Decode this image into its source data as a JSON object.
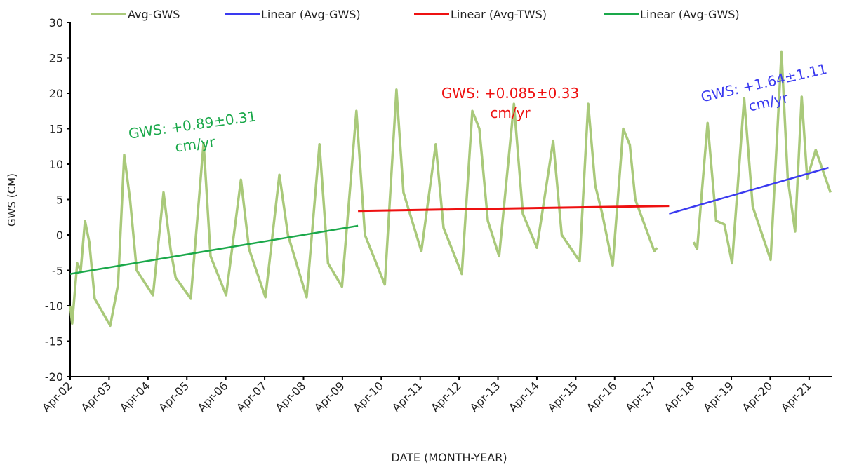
{
  "chart_data": {
    "type": "line",
    "x_label": "DATE (MONTH-YEAR)",
    "y_label": "GWS (CM)",
    "xlim": [
      2002.25,
      2021.83
    ],
    "ylim": [
      -20,
      30
    ],
    "xticks": [
      {
        "value": 2002.25,
        "label": "Apr-02"
      },
      {
        "value": 2003.25,
        "label": "Apr-03"
      },
      {
        "value": 2004.25,
        "label": "Apr-04"
      },
      {
        "value": 2005.25,
        "label": "Apr-05"
      },
      {
        "value": 2006.25,
        "label": "Apr-06"
      },
      {
        "value": 2007.25,
        "label": "Apr-07"
      },
      {
        "value": 2008.25,
        "label": "Apr-08"
      },
      {
        "value": 2009.25,
        "label": "Apr-09"
      },
      {
        "value": 2010.25,
        "label": "Apr-10"
      },
      {
        "value": 2011.25,
        "label": "Apr-11"
      },
      {
        "value": 2012.25,
        "label": "Apr-12"
      },
      {
        "value": 2013.25,
        "label": "Apr-13"
      },
      {
        "value": 2014.25,
        "label": "Apr-14"
      },
      {
        "value": 2015.25,
        "label": "Apr-15"
      },
      {
        "value": 2016.25,
        "label": "Apr-16"
      },
      {
        "value": 2017.25,
        "label": "Apr-17"
      },
      {
        "value": 2018.25,
        "label": "Apr-18"
      },
      {
        "value": 2019.25,
        "label": "Apr-19"
      },
      {
        "value": 2020.25,
        "label": "Apr-20"
      },
      {
        "value": 2021.25,
        "label": "Apr-21"
      }
    ],
    "yticks": [
      -20,
      -15,
      -10,
      -5,
      0,
      5,
      10,
      15,
      20,
      25,
      30
    ],
    "grid": false,
    "series": [
      {
        "name": "Avg-GWS",
        "color": "#a9c97a",
        "width": 3.5,
        "x": [
          2002.25,
          2002.3,
          2002.43,
          2002.52,
          2002.63,
          2002.74,
          2002.88,
          2003.28,
          2003.48,
          2003.64,
          2003.79,
          2003.96,
          2004.38,
          2004.65,
          2004.83,
          2004.96,
          2005.35,
          2005.68,
          2005.86,
          2006.26,
          2006.64,
          2006.85,
          2007.27,
          2007.63,
          2007.85,
          2008.33,
          2008.66,
          2008.88,
          2009.24,
          2009.61,
          2009.83,
          2010.34,
          2010.64,
          2010.82,
          2011.28,
          2011.65,
          2011.85,
          2012.32,
          2012.59,
          2012.77,
          2012.99,
          2013.28,
          2013.66,
          2013.89,
          2014.25,
          2014.67,
          2014.89,
          2015.35,
          2015.57,
          2015.75,
          2015.93,
          2016.2,
          2016.47,
          2016.64,
          2016.78,
          2017.27,
          2017.34,
          2017.8,
          2018.28,
          2018.37,
          2018.64,
          2018.86,
          2019.07,
          2019.27,
          2019.58,
          2019.8,
          2020.26,
          2020.54,
          2020.7,
          2020.89,
          2021.06,
          2021.2,
          2021.42,
          2021.8
        ],
        "values": [
          -10,
          -12.5,
          -4,
          -5,
          2,
          -1,
          -9,
          -12.8,
          -7,
          11.3,
          5,
          -5,
          -8.5,
          6,
          -2,
          -6,
          -9,
          13,
          -3,
          -8.5,
          7.8,
          -2,
          -8.8,
          8.5,
          0,
          -8.8,
          12.8,
          -4,
          -7.3,
          17.5,
          0,
          -7,
          20.5,
          6,
          -2.3,
          12.8,
          1,
          -5.5,
          17.5,
          15,
          2,
          -3,
          18.5,
          3,
          -1.8,
          13.3,
          0,
          -3.7,
          18.5,
          7,
          3,
          -4.3,
          15,
          12.7,
          5,
          -2.3,
          -1.8,
          null,
          -1,
          -2,
          15.8,
          2,
          1.5,
          -4,
          19.3,
          4,
          -3.5,
          25.8,
          8,
          0.5,
          19.5,
          8,
          12,
          6
        ]
      },
      {
        "name": "Linear (Avg-GWS)",
        "color": "#3a3af0",
        "width": 2.5,
        "x": [
          2017.65,
          2021.75
        ],
        "values": [
          3.0,
          9.5
        ]
      },
      {
        "name": "Linear (Avg-TWS)",
        "color": "#ee1111",
        "width": 3,
        "x": [
          2009.65,
          2017.65
        ],
        "values": [
          3.4,
          4.1
        ]
      },
      {
        "name": "Linear (Avg-GWS)",
        "color": "#1aa84a",
        "width": 2.5,
        "x": [
          2002.25,
          2009.65
        ],
        "values": [
          -5.5,
          1.3
        ]
      }
    ],
    "annotations": [
      {
        "lines": [
          "GWS: +0.89±0.31",
          "cm/yr"
        ],
        "color": "#1aa84a"
      },
      {
        "lines": [
          "GWS: +0.085±0.33",
          "cm/yr"
        ],
        "color": "#ee1111"
      },
      {
        "lines": [
          "GWS: +1.64±1.11",
          "cm/yr"
        ],
        "color": "#3a3af0"
      }
    ]
  }
}
